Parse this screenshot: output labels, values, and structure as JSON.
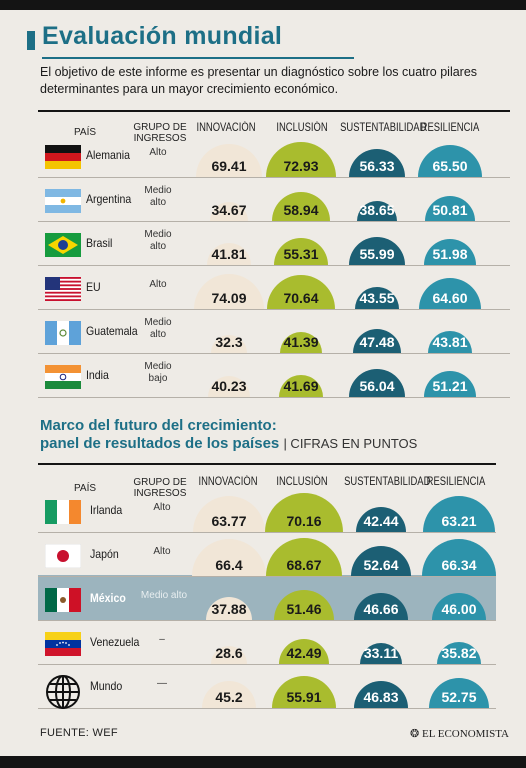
{
  "title": "Evaluación mundial",
  "intro": "El objetivo de este informe es presentar un diagnóstico sobre los cuatro pilares determinantes para un mayor crecimiento económico.",
  "colors": {
    "accent": "#1d6f86",
    "innovacion": "#f1e6d7",
    "inclusion": "#a9bc2e",
    "sustentabilidad": "#1c5f74",
    "resiliencia": "#2d93aa",
    "highlight": "#9cb4be"
  },
  "table1": {
    "headers": {
      "country": "PAÍS",
      "group": "GRUPO DE INGRESOS",
      "m0": "INNOVACIÓN",
      "m1": "INCLUSIÓN",
      "m2": "SUSTENTABILIDAD",
      "m3": "RESILIENCIA"
    },
    "rows": [
      {
        "country": "Alemania",
        "flag": "germany-flag",
        "group": "Alto",
        "values": [
          "69.41",
          "72.93",
          "56.33",
          "65.50"
        ]
      },
      {
        "country": "Argentina",
        "flag": "argentina-flag",
        "group": "Medio alto",
        "values": [
          "34.67",
          "58.94",
          "38.65",
          "50.81"
        ]
      },
      {
        "country": "Brasil",
        "flag": "brazil-flag",
        "group": "Medio alto",
        "values": [
          "41.81",
          "55.31",
          "55.99",
          "51.98"
        ]
      },
      {
        "country": "EU",
        "flag": "usa-flag",
        "group": "Alto",
        "values": [
          "74.09",
          "70.64",
          "43.55",
          "64.60"
        ]
      },
      {
        "country": "Guatemala",
        "flag": "guatemala-flag",
        "group": "Medio alto",
        "values": [
          "32.3",
          "41.39",
          "47.48",
          "43.81"
        ]
      },
      {
        "country": "India",
        "flag": "india-flag",
        "group": "Medio bajo",
        "values": [
          "40.23",
          "41.69",
          "56.04",
          "51.21"
        ]
      }
    ]
  },
  "table2": {
    "title1": "Marco del futuro del crecimiento:",
    "title2": "panel de resultados de los países",
    "units": "| CIFRAS EN PUNTOS",
    "headers": {
      "country": "PAÍS",
      "group": "GRUPO DE INGRESOS",
      "m0": "INNOVACIÓN",
      "m1": "INCLUSIÓN",
      "m2": "SUSTENTABILIDAD",
      "m3": "RESILIENCIA"
    },
    "rows": [
      {
        "country": "Irlanda",
        "flag": "ireland-flag",
        "group": "Alto",
        "values": [
          "63.77",
          "70.16",
          "42.44",
          "63.21"
        ]
      },
      {
        "country": "Japón",
        "flag": "japan-flag",
        "group": "Alto",
        "values": [
          "66.4",
          "68.67",
          "52.64",
          "66.34"
        ]
      },
      {
        "country": "México",
        "flag": "mexico-flag",
        "group": "Medio alto",
        "values": [
          "37.88",
          "51.46",
          "46.66",
          "46.00"
        ],
        "highlight": true
      },
      {
        "country": "Venezuela",
        "flag": "venezuela-flag",
        "group": "–",
        "values": [
          "28.6",
          "42.49",
          "33.11",
          "35.82"
        ]
      },
      {
        "country": "Mundo",
        "flag": "globe-icon",
        "group": "—",
        "values": [
          "45.2",
          "55.91",
          "46.83",
          "52.75"
        ]
      }
    ]
  },
  "chart_data": [
    {
      "type": "table",
      "columns": [
        "PAÍS",
        "GRUPO DE INGRESOS",
        "INNOVACIÓN",
        "INCLUSIÓN",
        "SUSTENTABILIDAD",
        "RESILIENCIA"
      ],
      "series": [
        {
          "name": "INNOVACIÓN",
          "values": [
            69.41,
            34.67,
            41.81,
            74.09,
            32.3,
            40.23
          ]
        },
        {
          "name": "INCLUSIÓN",
          "values": [
            72.93,
            58.94,
            55.31,
            70.64,
            41.39,
            41.69
          ]
        },
        {
          "name": "SUSTENTABILIDAD",
          "values": [
            56.33,
            38.65,
            55.99,
            43.55,
            47.48,
            56.04
          ]
        },
        {
          "name": "RESILIENCIA",
          "values": [
            65.5,
            50.81,
            51.98,
            64.6,
            43.81,
            51.21
          ]
        }
      ],
      "categories": [
        "Alemania",
        "Argentina",
        "Brasil",
        "EU",
        "Guatemala",
        "India"
      ]
    },
    {
      "type": "table",
      "title": "Marco del futuro del crecimiento: panel de resultados de los países",
      "columns": [
        "PAÍS",
        "GRUPO DE INGRESOS",
        "INNOVACIÓN",
        "INCLUSIÓN",
        "SUSTENTABILIDAD",
        "RESILIENCIA"
      ],
      "series": [
        {
          "name": "INNOVACIÓN",
          "values": [
            63.77,
            66.4,
            37.88,
            28.6,
            45.2
          ]
        },
        {
          "name": "INCLUSIÓN",
          "values": [
            70.16,
            68.67,
            51.46,
            42.49,
            55.91
          ]
        },
        {
          "name": "SUSTENTABILIDAD",
          "values": [
            42.44,
            52.64,
            46.66,
            33.11,
            46.83
          ]
        },
        {
          "name": "RESILIENCIA",
          "values": [
            63.21,
            66.34,
            46.0,
            35.82,
            52.75
          ]
        }
      ],
      "categories": [
        "Irlanda",
        "Japón",
        "México",
        "Venezuela",
        "Mundo"
      ]
    }
  ],
  "footer": {
    "source": "FUENTE: WEF",
    "brand": "EL ECONOMISTA"
  }
}
